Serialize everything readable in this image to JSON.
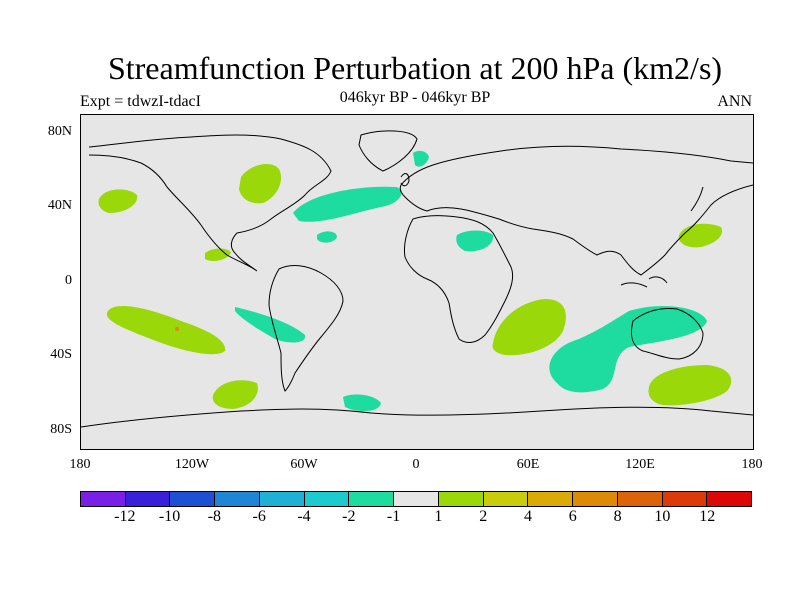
{
  "title": "Streamfunction Perturbation at 200 hPa (km2/s)",
  "subtitle": "046kyr BP - 046kyr BP",
  "left_label": "Expt = tdwzI-tdacI",
  "right_label": "ANN",
  "lat_ticks": [
    "80N",
    "40N",
    "0",
    "40S",
    "80S"
  ],
  "lon_ticks": [
    "180",
    "120W",
    "60W",
    "0",
    "60E",
    "120E",
    "180"
  ],
  "colorbar": {
    "colors": [
      "#7a1fe6",
      "#3a20d8",
      "#1f4fd2",
      "#1f86d6",
      "#1fb0d6",
      "#1ccbd0",
      "#1edca0",
      "#e6e6e6",
      "#9ad80a",
      "#c8cc0a",
      "#dcaa08",
      "#dc8a08",
      "#dc6408",
      "#dc3a08",
      "#dc0808"
    ],
    "labels": [
      "-12",
      "-10",
      "-8",
      "-6",
      "-4",
      "-2",
      "-1",
      "1",
      "2",
      "4",
      "6",
      "8",
      "10",
      "12"
    ]
  },
  "colors": {
    "positive": "#9ad80a",
    "negative": "#1edca0",
    "ocean_bg": "#e6e6e6",
    "warm_dot": "#dc8a08"
  }
}
